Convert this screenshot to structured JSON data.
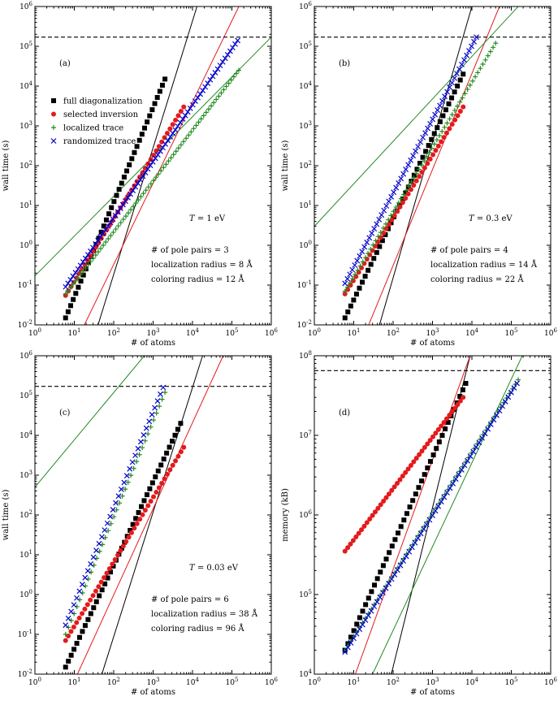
{
  "chart_data": [
    {
      "type": "scatter",
      "panel_label": "(a)",
      "scale": "log-log",
      "xlim": [
        1,
        1000000
      ],
      "ylim": [
        0.01,
        1000000
      ],
      "xlabel": "# of atoms",
      "ylabel": "wall time (s)",
      "x_ticks": [
        "10^0",
        "10^1",
        "10^2",
        "10^3",
        "10^4",
        "10^5",
        "10^6"
      ],
      "y_ticks": [
        "10^-2",
        "10^-1",
        "10^0",
        "10^1",
        "10^2",
        "10^3",
        "10^4",
        "10^5",
        "10^6"
      ],
      "legend": {
        "position": "upper-left",
        "entries": [
          {
            "label": "full diagonalization",
            "marker": "square",
            "color": "#000000"
          },
          {
            "label": "selected inversion",
            "marker": "circle",
            "color": "#e41a1c"
          },
          {
            "label": "localized trace",
            "marker": "plus",
            "color": "#228b22"
          },
          {
            "label": "randomized trace",
            "marker": "x",
            "color": "#0000cc"
          }
        ]
      },
      "temperature_label": "1 eV",
      "annotations": [
        "# of pole pairs = 3",
        "localization radius = 8 Å",
        "coloring radius = 12 Å"
      ],
      "hline": 170000,
      "series": [
        {
          "name": "full diagonalization",
          "marker": "square",
          "color": "#000000",
          "x_range": [
            6,
            2000
          ],
          "y_range": [
            0.015,
            15000
          ],
          "n": 40
        },
        {
          "name": "selected inversion",
          "marker": "circle",
          "color": "#e41a1c",
          "x_range": [
            6,
            6000
          ],
          "y_range": [
            0.055,
            3000
          ],
          "n": 44
        },
        {
          "name": "localized trace",
          "marker": "plus",
          "color": "#228b22",
          "x_range": [
            6,
            150000
          ],
          "y_range": [
            0.06,
            25000
          ],
          "n": 70
        },
        {
          "name": "randomized trace",
          "marker": "x",
          "color": "#0000cc",
          "x_range": [
            6,
            140000
          ],
          "y_range": [
            0.09,
            140000
          ],
          "n": 70
        }
      ],
      "fit_lines": [
        {
          "color": "#000000",
          "x1": 40,
          "y1": 0.01,
          "x2": 13000,
          "y2": 1000000
        },
        {
          "color": "#e41a1c",
          "x1": 18,
          "y1": 0.01,
          "x2": 150000,
          "y2": 1000000
        },
        {
          "color": "#228b22",
          "x1": 1,
          "y1": 0.17,
          "x2": 1000000,
          "y2": 170000
        }
      ]
    },
    {
      "type": "scatter",
      "panel_label": "(b)",
      "scale": "log-log",
      "xlim": [
        1,
        1000000
      ],
      "ylim": [
        0.01,
        1000000
      ],
      "xlabel": "# of atoms",
      "ylabel": "wall time (s)",
      "x_ticks": [
        "10^0",
        "10^1",
        "10^2",
        "10^3",
        "10^4",
        "10^5",
        "10^6"
      ],
      "y_ticks": [
        "10^-2",
        "10^-1",
        "10^0",
        "10^1",
        "10^2",
        "10^3",
        "10^4",
        "10^5",
        "10^6"
      ],
      "temperature_label": "0.3 eV",
      "annotations": [
        "# of pole pairs = 4",
        "localization radius = 14 Å",
        "coloring radius = 22 Å"
      ],
      "hline": 170000,
      "series": [
        {
          "name": "full diagonalization",
          "marker": "square",
          "color": "#000000",
          "x_range": [
            6,
            6000
          ],
          "y_range": [
            0.015,
            20000
          ],
          "n": 42
        },
        {
          "name": "selected inversion",
          "marker": "circle",
          "color": "#e41a1c",
          "x_range": [
            6,
            6000
          ],
          "y_range": [
            0.06,
            3000
          ],
          "n": 44
        },
        {
          "name": "localized trace",
          "marker": "plus",
          "color": "#228b22",
          "x_range": [
            6,
            40000
          ],
          "y_range": [
            0.07,
            120000
          ],
          "n": 60
        },
        {
          "name": "randomized trace",
          "marker": "x",
          "color": "#0000cc",
          "x_range": [
            6,
            13000
          ],
          "y_range": [
            0.11,
            170000
          ],
          "n": 55
        }
      ],
      "fit_lines": [
        {
          "color": "#000000",
          "x1": 45,
          "y1": 0.01,
          "x2": 10000,
          "y2": 1000000
        },
        {
          "color": "#e41a1c",
          "x1": 24,
          "y1": 0.01,
          "x2": 50000,
          "y2": 1000000
        },
        {
          "color": "#228b22",
          "x1": 1,
          "y1": 3,
          "x2": 150000,
          "y2": 1000000
        }
      ]
    },
    {
      "type": "scatter",
      "panel_label": "(c)",
      "scale": "log-log",
      "xlim": [
        1,
        1000000
      ],
      "ylim": [
        0.01,
        1000000
      ],
      "xlabel": "# of atoms",
      "ylabel": "wall time (s)",
      "x_ticks": [
        "10^0",
        "10^1",
        "10^2",
        "10^3",
        "10^4",
        "10^5",
        "10^6"
      ],
      "y_ticks": [
        "10^-2",
        "10^-1",
        "10^0",
        "10^1",
        "10^2",
        "10^3",
        "10^4",
        "10^5",
        "10^6"
      ],
      "temperature_label": "0.03 eV",
      "annotations": [
        "# of pole pairs = 6",
        "localization radius = 38 Å",
        "coloring radius = 96 Å"
      ],
      "hline": 170000,
      "series": [
        {
          "name": "full diagonalization",
          "marker": "square",
          "color": "#000000",
          "x_range": [
            6,
            5000
          ],
          "y_range": [
            0.015,
            20000
          ],
          "n": 42
        },
        {
          "name": "selected inversion",
          "marker": "circle",
          "color": "#e41a1c",
          "x_range": [
            6,
            6000
          ],
          "y_range": [
            0.07,
            5000
          ],
          "n": 44
        },
        {
          "name": "localized trace",
          "marker": "plus",
          "color": "#228b22",
          "x_range": [
            6,
            2000
          ],
          "y_range": [
            0.1,
            120000
          ],
          "n": 36
        },
        {
          "name": "randomized trace",
          "marker": "x",
          "color": "#0000cc",
          "x_range": [
            6,
            1800
          ],
          "y_range": [
            0.17,
            160000
          ],
          "n": 36
        }
      ],
      "fit_lines": [
        {
          "color": "#000000",
          "x1": 50,
          "y1": 0.01,
          "x2": 18000,
          "y2": 1000000
        },
        {
          "color": "#e41a1c",
          "x1": 12,
          "y1": 0.01,
          "x2": 60000,
          "y2": 1000000
        },
        {
          "color": "#228b22",
          "x1": 1,
          "y1": 500,
          "x2": 600,
          "y2": 1000000
        }
      ]
    },
    {
      "type": "scatter",
      "panel_label": "(d)",
      "scale": "log-log",
      "xlim": [
        1,
        1000000
      ],
      "ylim": [
        10000,
        100000000
      ],
      "xlabel": "# of atoms",
      "ylabel": "memory (kB)",
      "x_ticks": [
        "10^0",
        "10^1",
        "10^2",
        "10^3",
        "10^4",
        "10^5",
        "10^6"
      ],
      "y_ticks": [
        "10^4",
        "10^5",
        "10^6",
        "10^7",
        "10^8"
      ],
      "hline": 65000000,
      "series": [
        {
          "name": "full diagonalization",
          "marker": "square",
          "color": "#000000",
          "x_range": [
            6,
            7000
          ],
          "y_range": [
            20000,
            45000000
          ],
          "n": 42
        },
        {
          "name": "selected inversion",
          "marker": "circle",
          "color": "#e41a1c",
          "x_range": [
            6,
            6000
          ],
          "y_range": [
            350000,
            30000000
          ],
          "n": 44
        },
        {
          "name": "localized trace",
          "marker": "plus",
          "color": "#228b22",
          "x_range": [
            6,
            150000
          ],
          "y_range": [
            20000,
            50000000
          ],
          "n": 60
        },
        {
          "name": "randomized trace",
          "marker": "x",
          "color": "#0000cc",
          "x_range": [
            6,
            140000
          ],
          "y_range": [
            19000,
            45000000
          ],
          "n": 60
        }
      ],
      "fit_lines": [
        {
          "color": "#000000",
          "x1": 90,
          "y1": 10000,
          "x2": 9000,
          "y2": 100000000
        },
        {
          "color": "#e41a1c",
          "x1": 11,
          "y1": 10000,
          "x2": 9000,
          "y2": 100000000
        },
        {
          "color": "#228b22",
          "x1": 30,
          "y1": 10000,
          "x2": 190000,
          "y2": 100000000
        }
      ]
    }
  ]
}
